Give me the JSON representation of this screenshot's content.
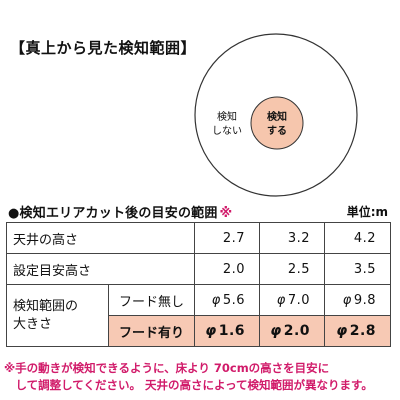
{
  "title": "【真上から見た検知範囲】",
  "diagram": {
    "outer_label_line1": "検知",
    "outer_label_line2": "しない",
    "inner_label_line1": "検知",
    "inner_label_line2": "する",
    "colors": {
      "outer_stroke": "#333333",
      "inner_fill": "#f6c6ad"
    }
  },
  "section": {
    "title": "●検知エリアカット後の目安の範囲",
    "mark": "※",
    "unit": "単位:m"
  },
  "table": {
    "ceiling": {
      "label": "天井の高さ",
      "values": [
        "2.7",
        "3.2",
        "4.2"
      ]
    },
    "setting": {
      "label": "設定目安高さ",
      "values": [
        "2.0",
        "2.5",
        "3.5"
      ]
    },
    "range_label_line1": "検知範囲の",
    "range_label_line2": "大きさ",
    "no_hood": {
      "label": "フード無し",
      "values": [
        "5.6",
        "7.0",
        "9.8"
      ]
    },
    "with_hood": {
      "label": "フード有り",
      "values": [
        "1.6",
        "2.0",
        "2.8"
      ]
    },
    "phi_symbol": "φ",
    "colors": {
      "hood_row_bg": "#f7c9b4",
      "border": "#444444"
    }
  },
  "notes": {
    "line1": "※手の動きが検知できるように、床より 70cmの高さを目安に",
    "line2": "　して調整してください。 天井の高さによって検知範囲が異なります。",
    "color": "#d11b6a"
  }
}
